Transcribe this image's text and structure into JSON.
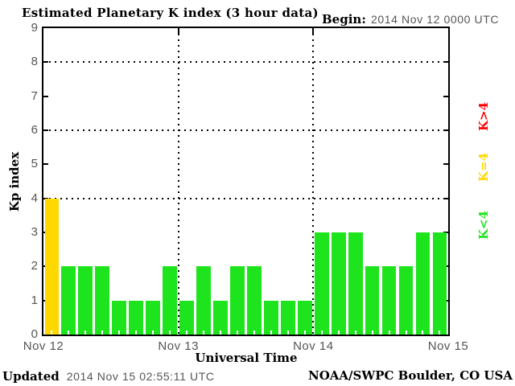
{
  "title": "Estimated Planetary K index (3 hour data)",
  "begin": {
    "label": "Begin:",
    "value": "2014 Nov 12 0000 UTC"
  },
  "y_axis": {
    "title": "Kp index",
    "tick_labels": [
      "0",
      "1",
      "2",
      "3",
      "4",
      "5",
      "6",
      "7",
      "8",
      "9"
    ]
  },
  "x_axis": {
    "title": "Universal Time",
    "day_labels": [
      "Nov 12",
      "Nov 13",
      "Nov 14",
      "Nov 15"
    ]
  },
  "legend": [
    {
      "label": "K>4",
      "color": "#ff0000"
    },
    {
      "label": "K=4",
      "color": "#ffd800"
    },
    {
      "label": "K<4",
      "color": "#1ee41e"
    }
  ],
  "footer": {
    "updated_label": "Updated",
    "updated_value": "2014 Nov 15 02:55:11 UTC",
    "source": "NOAA/SWPC Boulder, CO USA"
  },
  "chart_data": {
    "type": "bar",
    "title": "Estimated Planetary K index (3 hour data)",
    "begin_utc": "2014 Nov 12 0000 UTC",
    "interval_hours": 3,
    "xlabel": "Universal Time",
    "ylabel": "Kp index",
    "ylim": [
      0,
      9
    ],
    "categories_days": [
      "Nov 12",
      "Nov 13",
      "Nov 14"
    ],
    "values": [
      4,
      2,
      2,
      2,
      1,
      1,
      1,
      2,
      1,
      2,
      1,
      2,
      2,
      1,
      1,
      1,
      3,
      3,
      3,
      2,
      2,
      2,
      3,
      3
    ],
    "bars_per_day": 8,
    "color_rule": {
      "kp_lt_4": "#1ee41e",
      "kp_eq_4": "#ffd800",
      "kp_gt_4": "#ff0000"
    },
    "gridlines_kp": [
      4,
      6,
      8
    ],
    "day_boundary_lines": [
      "Nov 13",
      "Nov 14"
    ],
    "grid_style": "dotted",
    "legend_position": "right-rotated"
  }
}
